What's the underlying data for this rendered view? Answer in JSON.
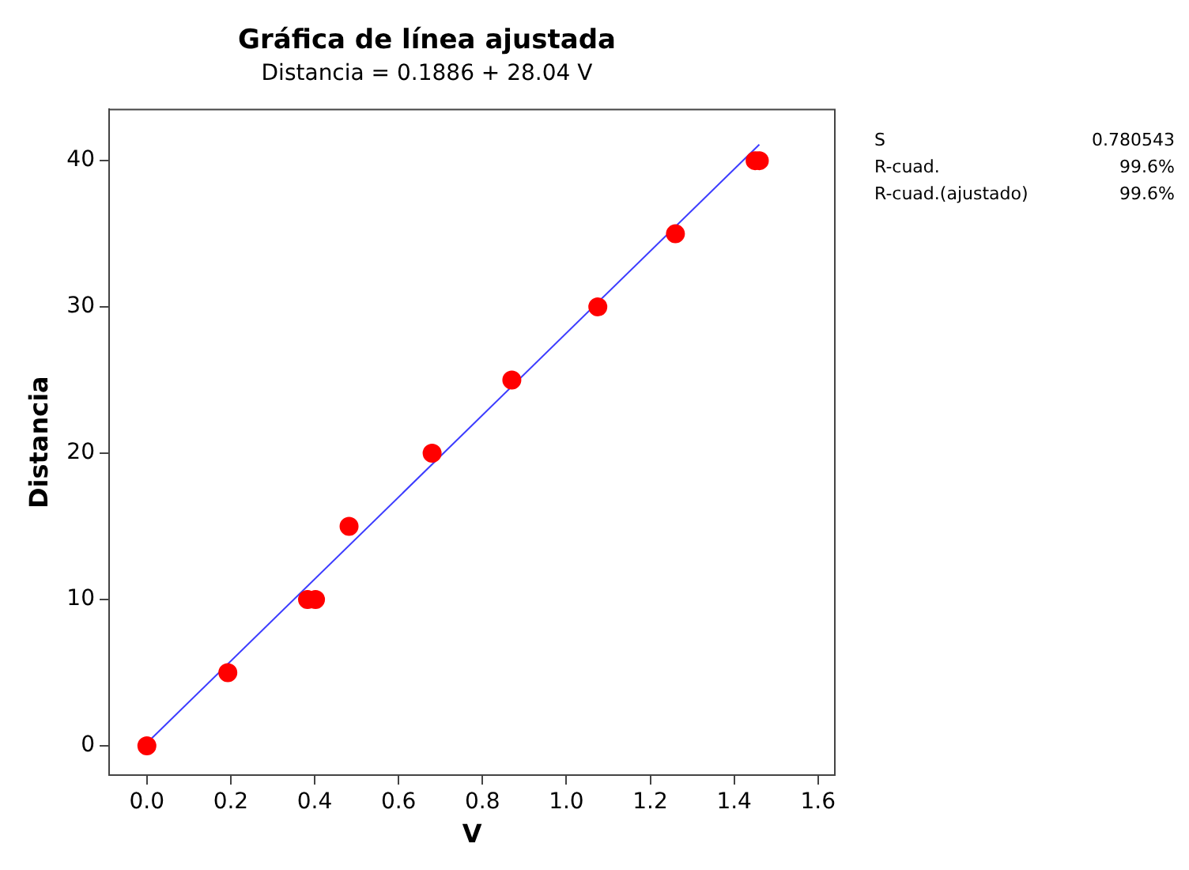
{
  "chart_data": {
    "type": "scatter",
    "title": "Gráfica de línea ajustada",
    "subtitle": "Distancia = 0.1886 + 28.04 V",
    "xlabel": "V",
    "ylabel": "Distancia",
    "series": [
      {
        "color": "#ff0000",
        "marker": "circle",
        "x": [
          0.0,
          0.193,
          0.383,
          0.402,
          0.482,
          0.68,
          0.87,
          1.075,
          1.26,
          1.45,
          1.46
        ],
        "values": [
          0,
          5,
          10,
          10,
          15,
          20,
          25,
          30,
          35,
          40,
          40
        ]
      },
      {
        "type": "line",
        "color": "#3c3cff",
        "marker": "none",
        "x": [
          0,
          1.46
        ],
        "values": [
          0.19,
          41.1
        ]
      }
    ],
    "line_style": "solid",
    "grid": false,
    "legend": false,
    "xlim": [
      -0.09,
      1.64
    ],
    "ylim": [
      -2,
      43.5
    ],
    "xticks": [
      {
        "value": 0,
        "label": "0.0"
      },
      0.2,
      0.4,
      0.6,
      0.8,
      {
        "value": 1,
        "label": "1.0"
      },
      1.2,
      1.4,
      1.6
    ],
    "yticks": [
      0,
      10,
      20,
      30,
      40
    ],
    "annotations": [
      "S",
      "0.780543",
      "R-cuad.",
      "99.6%",
      "R-cuad.(ajustado)",
      "99.6%"
    ]
  }
}
